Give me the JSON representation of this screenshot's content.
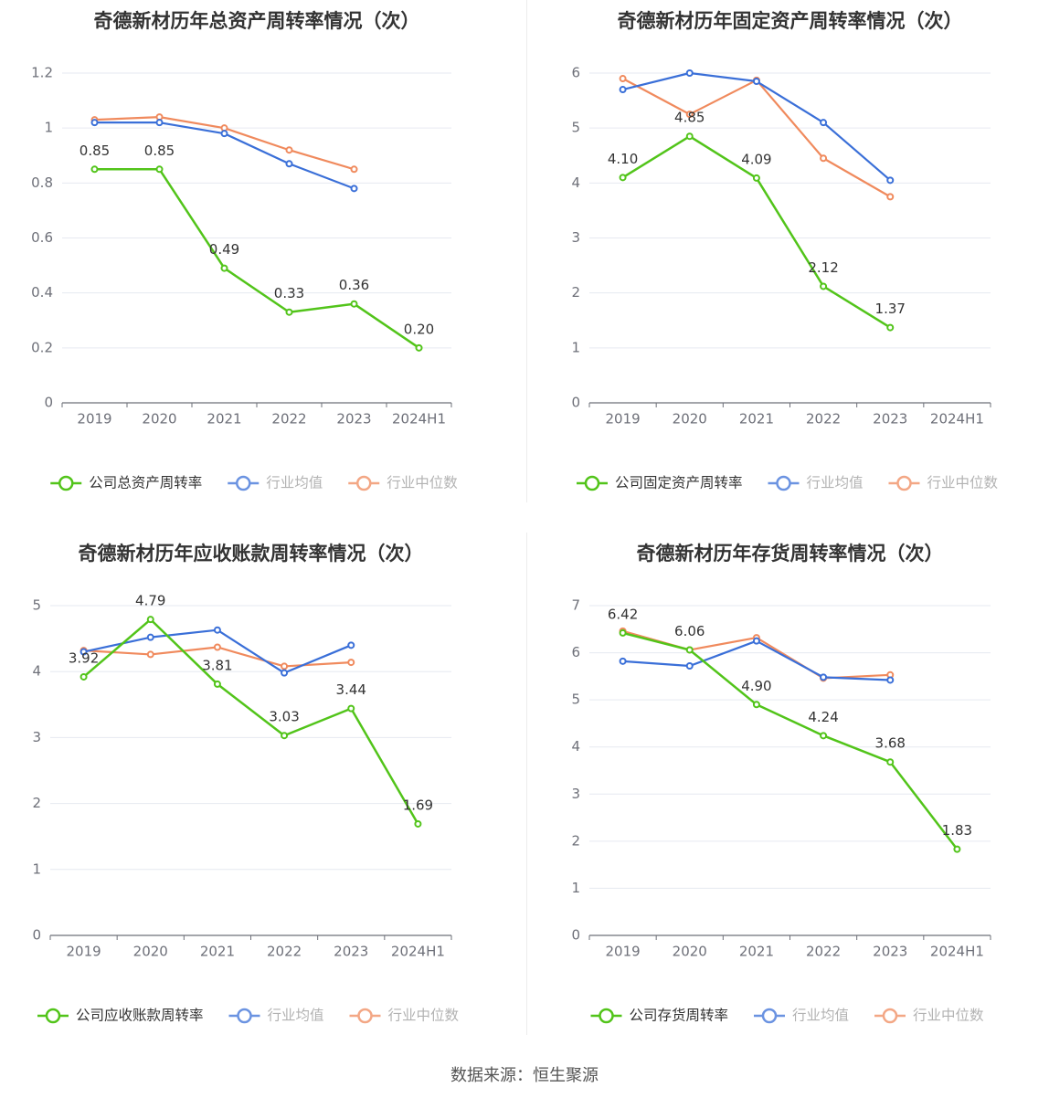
{
  "footer": {
    "source": "数据来源：恒生聚源"
  },
  "colors": {
    "company": "#52c41a",
    "average": "#3a6fd8",
    "median": "#f08a5d"
  },
  "chart_data": [
    {
      "type": "line",
      "title": "奇德新材历年总资产周转率情况（次）",
      "categories": [
        "2019",
        "2020",
        "2021",
        "2022",
        "2023",
        "2024H1"
      ],
      "ylim": [
        0,
        1.2
      ],
      "yticks": [
        "0",
        "0.2",
        "0.4",
        "0.6",
        "0.8",
        "1",
        "1.2"
      ],
      "series": [
        {
          "name": "公司总资产周转率",
          "values": [
            0.85,
            0.85,
            0.49,
            0.33,
            0.36,
            0.2
          ],
          "labels": [
            "0.85",
            "0.85",
            "0.49",
            "0.33",
            "0.36",
            "0.20"
          ]
        },
        {
          "name": "行业均值",
          "values": [
            1.02,
            1.02,
            0.98,
            0.87,
            0.78,
            null
          ]
        },
        {
          "name": "行业中位数",
          "values": [
            1.03,
            1.04,
            1.0,
            0.92,
            0.85,
            null
          ]
        }
      ],
      "grid": true,
      "legend": "bottom"
    },
    {
      "type": "line",
      "title": "奇德新材历年固定资产周转率情况（次）",
      "categories": [
        "2019",
        "2020",
        "2021",
        "2022",
        "2023",
        "2024H1"
      ],
      "ylim": [
        0,
        6
      ],
      "yticks": [
        "0",
        "1",
        "2",
        "3",
        "4",
        "5",
        "6"
      ],
      "series": [
        {
          "name": "公司固定资产周转率",
          "values": [
            4.1,
            4.85,
            4.09,
            2.12,
            1.37,
            null
          ],
          "labels": [
            "4.10",
            "4.85",
            "4.09",
            "2.12",
            "1.37",
            ""
          ]
        },
        {
          "name": "行业均值",
          "values": [
            5.7,
            6.0,
            5.85,
            5.1,
            4.05,
            null
          ]
        },
        {
          "name": "行业中位数",
          "values": [
            5.9,
            5.25,
            5.87,
            4.45,
            3.75,
            null
          ]
        }
      ],
      "grid": true,
      "legend": "bottom"
    },
    {
      "type": "line",
      "title": "奇德新材历年应收账款周转率情况（次）",
      "categories": [
        "2019",
        "2020",
        "2021",
        "2022",
        "2023",
        "2024H1"
      ],
      "ylim": [
        0,
        5
      ],
      "yticks": [
        "0",
        "1",
        "2",
        "3",
        "4",
        "5"
      ],
      "series": [
        {
          "name": "公司应收账款周转率",
          "values": [
            3.92,
            4.79,
            3.81,
            3.03,
            3.44,
            1.69
          ],
          "labels": [
            "3.92",
            "4.79",
            "3.81",
            "3.03",
            "3.44",
            "1.69"
          ]
        },
        {
          "name": "行业均值",
          "values": [
            4.3,
            4.52,
            4.63,
            3.98,
            4.4,
            null
          ]
        },
        {
          "name": "行业中位数",
          "values": [
            4.32,
            4.26,
            4.37,
            4.08,
            4.14,
            null
          ]
        }
      ],
      "grid": true,
      "legend": "bottom"
    },
    {
      "type": "line",
      "title": "奇德新材历年存货周转率情况（次）",
      "categories": [
        "2019",
        "2020",
        "2021",
        "2022",
        "2023",
        "2024H1"
      ],
      "ylim": [
        0,
        7
      ],
      "yticks": [
        "0",
        "1",
        "2",
        "3",
        "4",
        "5",
        "6",
        "7"
      ],
      "series": [
        {
          "name": "公司存货周转率",
          "values": [
            6.42,
            6.06,
            4.9,
            4.24,
            3.68,
            1.83
          ],
          "labels": [
            "6.42",
            "6.06",
            "4.90",
            "4.24",
            "3.68",
            "1.83"
          ]
        },
        {
          "name": "行业均值",
          "values": [
            5.82,
            5.72,
            6.25,
            5.48,
            5.42,
            null
          ]
        },
        {
          "name": "行业中位数",
          "values": [
            6.46,
            6.06,
            6.32,
            5.46,
            5.53,
            null
          ]
        }
      ],
      "grid": true,
      "legend": "bottom"
    }
  ]
}
